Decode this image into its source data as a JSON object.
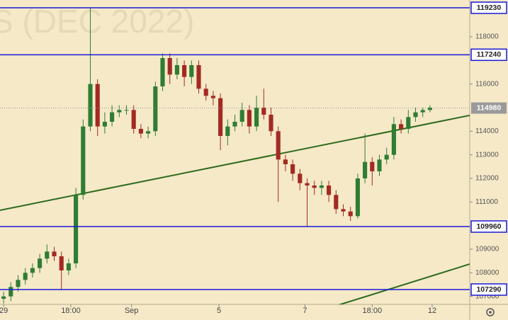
{
  "chart_data": {
    "type": "candlestick",
    "watermark": "S (DEC 2022)",
    "xlim": [
      -0.5,
      64.5
    ],
    "xticks": [
      {
        "value": 0,
        "label": "29"
      },
      {
        "value": 9.3,
        "label": "18:00"
      },
      {
        "value": 17.7,
        "label": "Sep"
      },
      {
        "value": 29.8,
        "label": "5"
      },
      {
        "value": 41.7,
        "label": "7"
      },
      {
        "value": 51,
        "label": "18:00"
      },
      {
        "value": 59.3,
        "label": "12"
      }
    ],
    "ylim": [
      106660,
      119560
    ],
    "yticks": [
      107000,
      108000,
      109000,
      111000,
      112000,
      113000,
      114000,
      116000,
      118000
    ],
    "up_color": "#2f7d32",
    "down_color": "#a32a22",
    "open": [
      106900,
      107000,
      107400,
      107700,
      108000,
      108200,
      108600,
      108900,
      108700,
      108100,
      108400,
      111300,
      114200,
      116000,
      114200,
      114400,
      114800,
      114900,
      114900,
      114100,
      113900,
      114000,
      115900,
      117100,
      116400,
      116800,
      116300,
      116800,
      115800,
      115500,
      115400,
      113800,
      114200,
      114400,
      114900,
      114200,
      115000,
      114700,
      114000,
      112800,
      112600,
      112200,
      111800,
      111700,
      111600,
      111700,
      111300,
      110700,
      110600,
      110400,
      112000,
      112700,
      112300,
      112800,
      113000,
      114300,
      114100,
      114600,
      114800,
      114900
    ],
    "high": [
      107200,
      107600,
      107900,
      108200,
      108400,
      108800,
      109200,
      109100,
      108900,
      108600,
      111600,
      114500,
      119230,
      116200,
      114800,
      115100,
      115100,
      115100,
      115100,
      114300,
      114200,
      116100,
      117300,
      117300,
      117100,
      117000,
      117000,
      117000,
      116000,
      115700,
      115600,
      114500,
      114700,
      115200,
      115100,
      115500,
      115800,
      115000,
      114200,
      113000,
      112800,
      112400,
      112000,
      111900,
      111900,
      111900,
      111500,
      110900,
      110800,
      112200,
      113900,
      112900,
      113000,
      113300,
      114600,
      114500,
      114900,
      115000,
      115000,
      115100
    ],
    "low": [
      106700,
      106800,
      107200,
      107500,
      107800,
      108000,
      108400,
      108500,
      107300,
      107900,
      108200,
      111100,
      114000,
      113800,
      113900,
      114200,
      114600,
      114700,
      113900,
      113700,
      113700,
      113800,
      115700,
      116000,
      116200,
      115900,
      116000,
      115600,
      115300,
      115100,
      113200,
      113400,
      114000,
      114200,
      113900,
      114000,
      114500,
      113800,
      111000,
      112300,
      111900,
      111500,
      109960,
      111300,
      111300,
      111000,
      110500,
      110400,
      110200,
      110300,
      111800,
      111700,
      112100,
      112600,
      112800,
      113900,
      113900,
      114400,
      114600,
      114800
    ],
    "close": [
      107000,
      107400,
      107700,
      108000,
      108200,
      108600,
      108900,
      108700,
      108100,
      108400,
      111300,
      114200,
      116000,
      114200,
      114400,
      114800,
      114900,
      114900,
      114100,
      113900,
      114000,
      115900,
      117100,
      116400,
      116800,
      116300,
      116800,
      115800,
      115500,
      115400,
      113800,
      114200,
      114400,
      114900,
      114200,
      115000,
      114700,
      114000,
      112800,
      112600,
      112200,
      111800,
      111700,
      111600,
      111700,
      111300,
      110700,
      110600,
      110400,
      112000,
      112700,
      112300,
      112800,
      113000,
      114300,
      114100,
      114600,
      114800,
      114900,
      115000
    ],
    "levels": [
      119230,
      117240,
      109960,
      107290
    ],
    "level_color": "#1a1ad6",
    "last_price": 114980,
    "trendlines": [
      {
        "x": [
          -0.5,
          64.5
        ],
        "y": [
          110650,
          114670
        ]
      },
      {
        "x": [
          39.7,
          64.5
        ],
        "y": [
          106000,
          108370
        ]
      }
    ],
    "trend_color": "#2e6b1e"
  }
}
